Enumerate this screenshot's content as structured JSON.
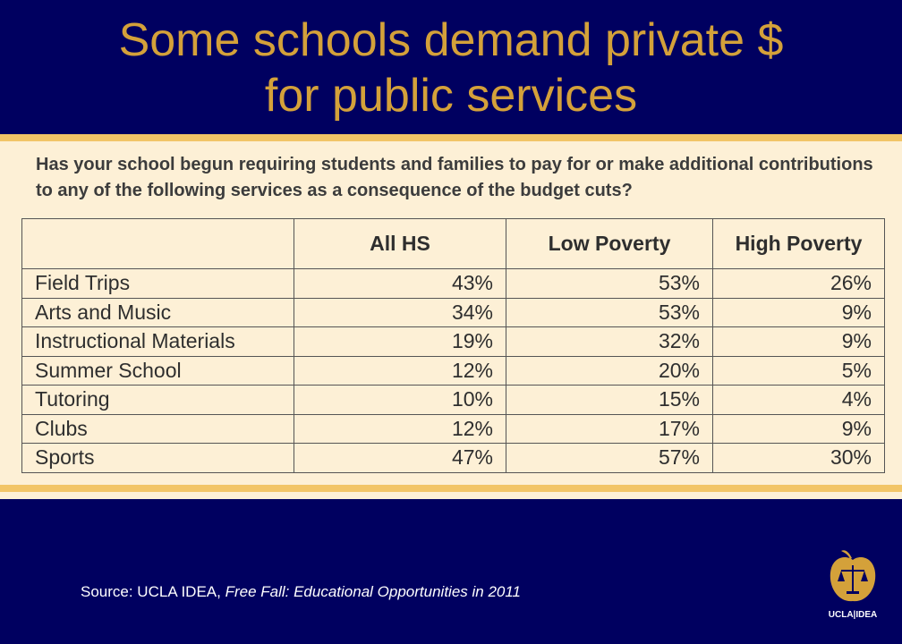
{
  "title": {
    "line1": "Some schools demand private $",
    "line2": "for public services"
  },
  "question": "Has your school begun requiring students and families to pay for or make additional contributions to any of the following services as a consequence of the budget cuts?",
  "source": {
    "prefix": "Source:  UCLA IDEA, ",
    "title": "Free Fall:  Educational Opportunities in 2011"
  },
  "logo_text": "UCLA|IDEA",
  "colors": {
    "background": "#000060",
    "title": "#d4a13a",
    "panel": "#fdf0d6",
    "stripe": "#f2c567"
  },
  "chart_data": {
    "type": "table",
    "columns": [
      "",
      "All HS",
      "Low Poverty",
      "High Poverty"
    ],
    "rows": [
      {
        "label": "Field Trips",
        "values": [
          "43%",
          "53%",
          "26%"
        ]
      },
      {
        "label": "Arts and Music",
        "values": [
          "34%",
          "53%",
          "9%"
        ]
      },
      {
        "label": "Instructional Materials",
        "values": [
          "19%",
          "32%",
          "9%"
        ]
      },
      {
        "label": "Summer School",
        "values": [
          "12%",
          "20%",
          "5%"
        ]
      },
      {
        "label": "Tutoring",
        "values": [
          "10%",
          "15%",
          "4%"
        ]
      },
      {
        "label": "Clubs",
        "values": [
          "12%",
          "17%",
          "9%"
        ]
      },
      {
        "label": "Sports",
        "values": [
          "47%",
          "57%",
          "30%"
        ]
      }
    ]
  }
}
